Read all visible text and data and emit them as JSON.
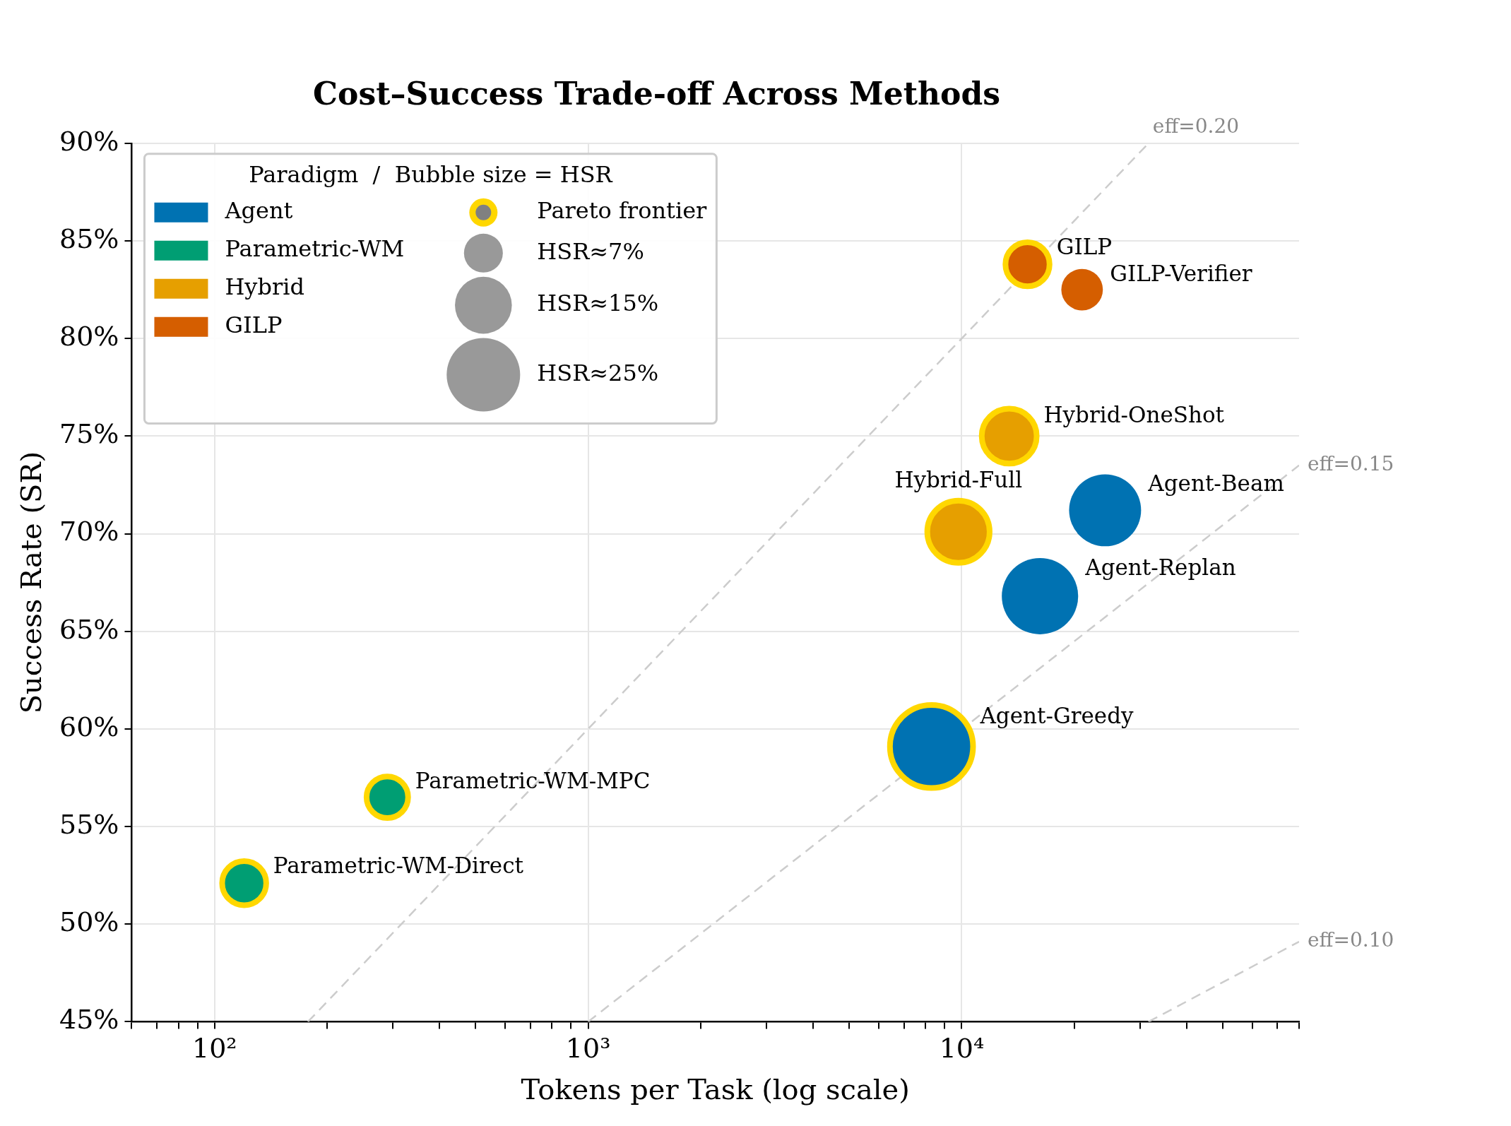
{
  "chart_data": {
    "type": "bubble",
    "title": "Cost–Success Trade-off Across Methods",
    "xlabel": "Tokens per Task (log scale)",
    "ylabel": "Success Rate (SR)",
    "legend_title": "Paradigm  /  Bubble size = HSR",
    "legend": "top left",
    "grid": true,
    "log": "x",
    "xlim": [
      60,
      80000
    ],
    "xticks": [
      {
        "value": 60,
        "label": null
      },
      {
        "value": 70,
        "label": null
      },
      {
        "value": 80,
        "label": null
      },
      {
        "value": 90,
        "label": null
      },
      {
        "value": 100,
        "label": "10²"
      },
      {
        "value": 200,
        "label": null
      },
      {
        "value": 300,
        "label": null
      },
      {
        "value": 400,
        "label": null
      },
      {
        "value": 500,
        "label": null
      },
      {
        "value": 600,
        "label": null
      },
      {
        "value": 700,
        "label": null
      },
      {
        "value": 800,
        "label": null
      },
      {
        "value": 900,
        "label": null
      },
      {
        "value": 1000,
        "label": "10³"
      },
      {
        "value": 2000,
        "label": null
      },
      {
        "value": 3000,
        "label": null
      },
      {
        "value": 4000,
        "label": null
      },
      {
        "value": 5000,
        "label": null
      },
      {
        "value": 6000,
        "label": null
      },
      {
        "value": 7000,
        "label": null
      },
      {
        "value": 8000,
        "label": null
      },
      {
        "value": 9000,
        "label": null
      },
      {
        "value": 10000,
        "label": "10⁴"
      },
      {
        "value": 20000,
        "label": null
      },
      {
        "value": 30000,
        "label": null
      },
      {
        "value": 40000,
        "label": null
      },
      {
        "value": 50000,
        "label": null
      },
      {
        "value": 60000,
        "label": null
      },
      {
        "value": 70000,
        "label": null
      },
      {
        "value": 80000,
        "label": null
      }
    ],
    "ylim": [
      45,
      90
    ],
    "yticks": [
      {
        "value": 45,
        "label": "45%"
      },
      {
        "value": 50,
        "label": "50%"
      },
      {
        "value": 55,
        "label": "55%"
      },
      {
        "value": 60,
        "label": "60%"
      },
      {
        "value": 65,
        "label": "65%"
      },
      {
        "value": 70,
        "label": "70%"
      },
      {
        "value": 75,
        "label": "75%"
      },
      {
        "value": 80,
        "label": "80%"
      },
      {
        "value": 85,
        "label": "85%"
      },
      {
        "value": 90,
        "label": "90%"
      }
    ],
    "size_legend": [
      {
        "value": 7,
        "label": "HSR≈7%"
      },
      {
        "value": 15,
        "label": "HSR≈15%"
      },
      {
        "value": 25,
        "label": "HSR≈25%"
      }
    ],
    "series": [
      {
        "name": "eff=0.20",
        "type": "line",
        "color": "#cccccc",
        "line_style": "dashed",
        "marker": "none",
        "x": [
          177.8,
          31623
        ],
        "values": [
          45,
          90
        ]
      },
      {
        "name": "eff=0.15",
        "type": "line",
        "color": "#cccccc",
        "line_style": "dashed",
        "marker": "none",
        "x": [
          1000,
          80000
        ],
        "values": [
          45,
          73.5
        ]
      },
      {
        "name": "eff=0.10",
        "type": "line",
        "color": "#cccccc",
        "line_style": "dashed",
        "marker": "none",
        "x": [
          31623,
          80000
        ],
        "values": [
          45,
          49.1
        ]
      },
      {
        "name": "Pareto frontier",
        "type": "scatter",
        "color": "#ffd700",
        "x": [
          120,
          290,
          8300,
          9800,
          13400,
          15000
        ],
        "values": [
          52.1,
          56.5,
          59.1,
          70.1,
          75,
          83.8
        ],
        "sizes": [
          9,
          8,
          32,
          18,
          14,
          9
        ]
      },
      {
        "name": "Agent",
        "color": "#0072b2",
        "x": [
          8300,
          16200,
          24200
        ],
        "values": [
          59.1,
          66.8,
          71.2
        ],
        "sizes": [
          32,
          27,
          24
        ]
      },
      {
        "name": "Parametric-WM",
        "color": "#009e73",
        "x": [
          120,
          290
        ],
        "values": [
          52.1,
          56.5
        ],
        "sizes": [
          9,
          8
        ]
      },
      {
        "name": "Hybrid",
        "color": "#e69f00",
        "x": [
          9800,
          13400
        ],
        "values": [
          70.1,
          75
        ],
        "sizes": [
          18,
          14
        ]
      },
      {
        "name": "GILP",
        "color": "#d55e00",
        "x": [
          15000,
          21000
        ],
        "values": [
          83.8,
          82.5
        ],
        "sizes": [
          9,
          8
        ]
      }
    ],
    "annotations": [
      {
        "text": "GILP",
        "x": 15000,
        "y": 83.8
      },
      {
        "text": "GILP-Verifier",
        "x": 21000,
        "y": 82.5
      },
      {
        "text": "Hybrid-OneShot",
        "x": 13400,
        "y": 75
      },
      {
        "text": "Hybrid-Full",
        "x": 9800,
        "y": 70.1
      },
      {
        "text": "Agent-Beam",
        "x": 24200,
        "y": 71.2
      },
      {
        "text": "Agent-Replan",
        "x": 16200,
        "y": 66.8
      },
      {
        "text": "Agent-Greedy",
        "x": 8300,
        "y": 59.1
      },
      {
        "text": "Parametric-WM-MPC",
        "x": 290,
        "y": 56.5
      },
      {
        "text": "Parametric-WM-Direct",
        "x": 120,
        "y": 52.1
      }
    ]
  }
}
